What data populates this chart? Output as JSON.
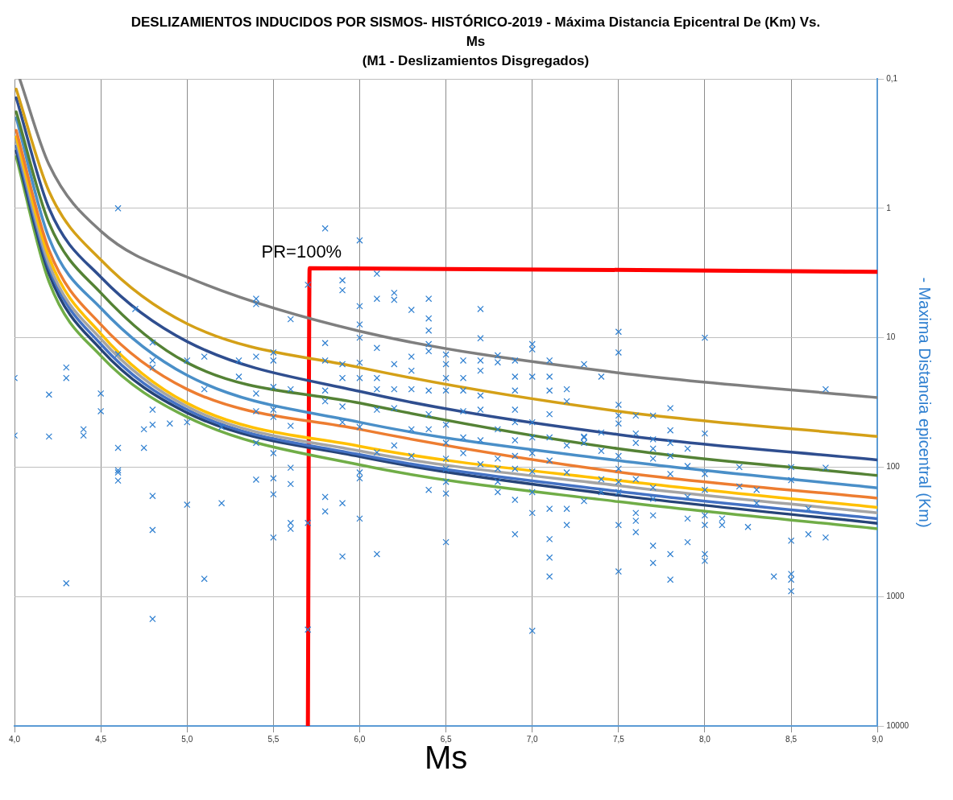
{
  "chart_data": {
    "type": "line",
    "title": "DESLIZAMIENTOS INDUCIDOS POR SISMOS- HISTÓRICO-2019 - Máxima Distancia Epicentral De (Km) Vs. Ms",
    "subtitle": "(M1 - Deslizamientos Disgregados)",
    "xlabel": "Ms",
    "ylabel": "- Maxima Distancia epicentral (Km)",
    "xlim": [
      4,
      9
    ],
    "xticks": [
      {
        "value": 4,
        "label": "4,0"
      },
      {
        "value": 4.5,
        "label": "4,5"
      },
      {
        "value": 5,
        "label": "5,0"
      },
      {
        "value": 5.5,
        "label": "5,5"
      },
      {
        "value": 6,
        "label": "6,0"
      },
      {
        "value": 6.5,
        "label": "6,5"
      },
      {
        "value": 7,
        "label": "7,0"
      },
      {
        "value": 7.5,
        "label": "7,5"
      },
      {
        "value": 8,
        "label": "8,0"
      },
      {
        "value": 8.5,
        "label": "8,5"
      },
      {
        "value": 9,
        "label": "9,0"
      }
    ],
    "ylim": [
      10000,
      0.1
    ],
    "yticks": [
      {
        "value": 0.1,
        "label": "0,1"
      },
      1,
      10,
      100,
      1000,
      10000
    ],
    "log": "y",
    "grid": true,
    "annotations": [
      {
        "text": "PR=100%",
        "x": 5.71,
        "y": 2.9
      }
    ],
    "series": [
      {
        "type": "line",
        "color": "#7f7f7f",
        "marker": "none",
        "x": [
          4.03,
          4.2,
          4.5,
          5,
          6,
          7.5,
          9
        ],
        "values": [
          0.1,
          0.46,
          1.5,
          3.4,
          8.9,
          18.7,
          29
        ]
      },
      {
        "type": "line",
        "color": "#d4a017",
        "marker": "none",
        "x": [
          4.01,
          4.2,
          4.5,
          5,
          6,
          7.5,
          9
        ],
        "values": [
          0.12,
          0.74,
          2.5,
          7.8,
          17,
          37,
          58
        ]
      },
      {
        "type": "line",
        "color": "#2f4e8f",
        "marker": "none",
        "x": [
          4.01,
          4.2,
          4.5,
          5,
          6,
          7.5,
          9
        ],
        "values": [
          0.14,
          1.0,
          3.4,
          10.7,
          26,
          56,
          88
        ]
      },
      {
        "type": "line",
        "color": "#548235",
        "marker": "none",
        "x": [
          4.01,
          4.2,
          4.5,
          5,
          6,
          7.5,
          9
        ],
        "values": [
          0.18,
          1.3,
          4.5,
          15.6,
          32,
          72,
          116
        ]
      },
      {
        "type": "line",
        "color": "#4a8fc8",
        "marker": "none",
        "x": [
          4.01,
          4.2,
          4.5,
          5,
          6,
          7.5,
          9
        ],
        "values": [
          0.2,
          1.7,
          5.9,
          19.5,
          45,
          89,
          145
        ]
      },
      {
        "type": "line",
        "color": "#ed7d31",
        "marker": "none",
        "x": [
          4.01,
          4.2,
          4.5,
          5,
          6,
          7.5,
          9
        ],
        "values": [
          0.25,
          2.1,
          7.9,
          25,
          51,
          109,
          174
        ]
      },
      {
        "type": "line",
        "color": "#ffc000",
        "marker": "none",
        "x": [
          4.01,
          4.2,
          4.5,
          5,
          6,
          7.5,
          9
        ],
        "values": [
          0.28,
          2.4,
          9.3,
          32,
          69,
          127,
          205
        ]
      },
      {
        "type": "line",
        "color": "#a5a5a5",
        "marker": "none",
        "x": [
          4.01,
          4.2,
          4.5,
          5,
          6,
          7.5,
          9
        ],
        "values": [
          0.3,
          2.7,
          10.2,
          34,
          75,
          139,
          226
        ]
      },
      {
        "type": "line",
        "color": "#4472c4",
        "marker": "none",
        "x": [
          4.01,
          4.2,
          4.5,
          5,
          6,
          7.5,
          9
        ],
        "values": [
          0.33,
          2.9,
          11.2,
          36,
          80,
          154,
          250
        ]
      },
      {
        "type": "line",
        "color": "#264478",
        "marker": "none",
        "x": [
          4.01,
          4.2,
          4.5,
          5,
          6,
          7.5,
          9
        ],
        "values": [
          0.36,
          3.2,
          12.3,
          38,
          83,
          165,
          272
        ]
      },
      {
        "type": "line",
        "color": "#70ad47",
        "marker": "none",
        "x": [
          4.01,
          4.2,
          4.5,
          5,
          6,
          7.5,
          9
        ],
        "values": [
          0.4,
          3.7,
          13.8,
          41,
          96,
          185,
          299
        ]
      },
      {
        "type": "scatter",
        "color": "#2e7fd0",
        "marker": "cross",
        "x": [
          4.6,
          5.4,
          5.4,
          4.7,
          5.6,
          5.7,
          4.8,
          4.6,
          4.8,
          4.8,
          5.0,
          5.1,
          5.3,
          5.4,
          5.5,
          5.5,
          4.3,
          4.3,
          4.0,
          4.2,
          4.5,
          4.5,
          4.0,
          4.2,
          4.4,
          4.4,
          4.6,
          4.6,
          4.6,
          4.6,
          4.75,
          4.75,
          4.8,
          4.8,
          4.9,
          5.0,
          4.8,
          5.0,
          5.2,
          4.8,
          4.3,
          5.1,
          4.8,
          5.2,
          5.1,
          5.4,
          5.4,
          5.4,
          5.5,
          5.5,
          5.5,
          5.5,
          5.5,
          5.5,
          5.5,
          5.4,
          5.6,
          5.6,
          5.6,
          5.6,
          5.6,
          5.6,
          5.3,
          5.8,
          6.0,
          5.9,
          5.9,
          6.1,
          6.1,
          6.2,
          6.2,
          6.3,
          6.4,
          6.4,
          6.4,
          6.0,
          6.7,
          5.8,
          6.0,
          6.0,
          6.1,
          6.7,
          7.0,
          7.0,
          6.2,
          6.3,
          6.4,
          6.4,
          6.5,
          6.5,
          6.5,
          6.5,
          6.6,
          6.7,
          6.7,
          6.8,
          6.8,
          6.9,
          6.9,
          7.0,
          7.1,
          7.1,
          7.3,
          5.8,
          5.9,
          5.9,
          6.0,
          6.0,
          6.1,
          6.1,
          6.2,
          6.2,
          6.3,
          6.3,
          6.4,
          6.4,
          6.6,
          6.6,
          6.6,
          6.7,
          6.7,
          6.9,
          6.9,
          6.9,
          7.0,
          7.1,
          7.1,
          7.2,
          7.2,
          7.3,
          5.8,
          5.8,
          5.9,
          5.9,
          6.0,
          6.1,
          6.2,
          6.3,
          6.3,
          6.4,
          6.5,
          6.5,
          6.5,
          6.5,
          6.5,
          6.5,
          6.4,
          6.6,
          6.6,
          6.7,
          6.7,
          6.8,
          6.8,
          6.8,
          6.8,
          6.8,
          6.9,
          6.9,
          6.9,
          6.9,
          7.0,
          7.0,
          7.0,
          7.0,
          7.0,
          7.1,
          7.1,
          7.1,
          7.1,
          7.1,
          7.1,
          7.2,
          7.2,
          7.2,
          7.2,
          6.9,
          6.5,
          6.0,
          6.0,
          6.0,
          5.9,
          5.8,
          5.8,
          5.9,
          6.1,
          5.7,
          6.1,
          7.5,
          8.0,
          7.5,
          7.4,
          8.7,
          7.5,
          7.5,
          7.5,
          7.6,
          7.7,
          7.8,
          7.3,
          7.3,
          7.4,
          7.4,
          7.5,
          7.5,
          7.6,
          7.6,
          7.7,
          7.7,
          7.7,
          7.8,
          7.8,
          7.8,
          7.9,
          8.0,
          7.8,
          7.9,
          8.0,
          8.0,
          8.2,
          8.2,
          8.3,
          8.5,
          8.5,
          8.7,
          7.4,
          7.4,
          7.5,
          7.5,
          7.6,
          7.7,
          7.7,
          7.9,
          8.3,
          8.6,
          7.3,
          7.5,
          7.6,
          7.6,
          7.6,
          7.7,
          7.9,
          8.0,
          8.0,
          8.1,
          8.1,
          8.25,
          8.6,
          8.7,
          8.5,
          7.7,
          7.7,
          7.8,
          7.9,
          8.0,
          8.0,
          7.5,
          7.8,
          8.4,
          8.5,
          8.5,
          8.5,
          7.0,
          5.7
        ],
        "values": [
          1.0,
          5.0,
          5.5,
          6.0,
          7.2,
          3.9,
          10.9,
          13.4,
          15,
          17,
          15,
          14,
          15,
          14,
          13,
          15,
          17,
          20.5,
          20.5,
          27.5,
          27,
          37,
          57,
          58,
          51,
          57,
          71,
          106,
          110,
          127,
          51,
          71,
          36,
          47,
          46,
          45,
          167,
          195,
          190,
          306,
          790,
          730,
          1490,
          49,
          25,
          27,
          37,
          65,
          24,
          36,
          41,
          78,
          122,
          162,
          350,
          125,
          25,
          48,
          101,
          135,
          270,
          300,
          20,
          1.43,
          1.77,
          3.6,
          4.3,
          3.2,
          5.0,
          4.5,
          5.1,
          6.1,
          5.0,
          7.1,
          8.8,
          5.7,
          6.0,
          11,
          7.9,
          10,
          12,
          10.1,
          11.2,
          12.3,
          16,
          14,
          11.2,
          12.7,
          13.5,
          16,
          20.5,
          25.6,
          15,
          15,
          18,
          13.7,
          15.5,
          15,
          20,
          20,
          15,
          20,
          16,
          15,
          16,
          20.5,
          15.6,
          20.5,
          20.5,
          25,
          25,
          35,
          18,
          25,
          25.6,
          39,
          20.5,
          25.6,
          37,
          28,
          36,
          25.6,
          36,
          45,
          45,
          25.6,
          39,
          25,
          31,
          59,
          25.6,
          31,
          34,
          45,
          49,
          36,
          68,
          51,
          82,
          51,
          47,
          65,
          86,
          103,
          130,
          160,
          150,
          59,
          78,
          62,
          95,
          51,
          86,
          103,
          130,
          156,
          62,
          82,
          103,
          179,
          59,
          78,
          108,
          156,
          226,
          59,
          89,
          210,
          360,
          500,
          700,
          68,
          110,
          210,
          280,
          330,
          380,
          110,
          122,
          250,
          190,
          170,
          220,
          490,
          470,
          270,
          77,
          9.0,
          10,
          13,
          20,
          25,
          33,
          40,
          46,
          40,
          40,
          35,
          58,
          65,
          54,
          75,
          82,
          103,
          55,
          65,
          61,
          72,
          86,
          52,
          65,
          82,
          72,
          55,
          113,
          98,
          113,
          150,
          100,
          141,
          150,
          100,
          126,
          101,
          124,
          156,
          130,
          156,
          124,
          144,
          176,
          170,
          190,
          210,
          183,
          280,
          226,
          260,
          318,
          236,
          250,
          236,
          280,
          250,
          280,
          290,
          330,
          350,
          370,
          405,
          550,
          470,
          380,
          470,
          530,
          640,
          740,
          700,
          670,
          740,
          910,
          1840,
          1800
        ]
      },
      {
        "type": "line",
        "color": "#ff0000",
        "marker": "none",
        "x": [
          5.7,
          5.71,
          9.0
        ],
        "values": [
          10000,
          2.9,
          3.1
        ]
      }
    ]
  }
}
